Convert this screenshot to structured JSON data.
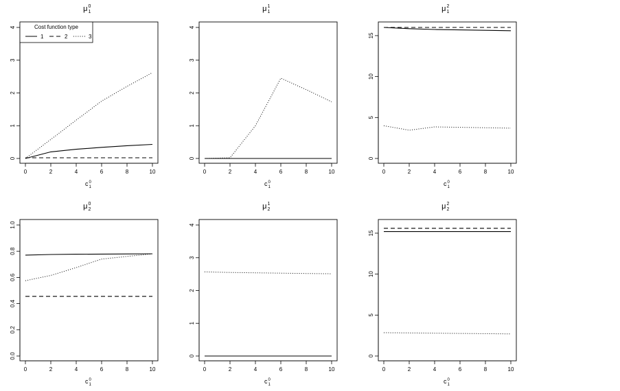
{
  "chart_data": [
    {
      "type": "line",
      "title": {
        "base": "μ",
        "sub": "1",
        "sup": "0"
      },
      "xlabel": {
        "base": "c",
        "sub": "1",
        "sup": "0"
      },
      "x": [
        0,
        2,
        4,
        6,
        8,
        10
      ],
      "xticks": [
        0,
        2,
        4,
        6,
        8,
        10
      ],
      "ylim": [
        0,
        4
      ],
      "yticks": [
        "0",
        "1",
        "2",
        "3",
        "4"
      ],
      "series": [
        {
          "name": "1",
          "linestyle": "solid",
          "values": [
            0.0,
            0.2,
            0.28,
            0.34,
            0.39,
            0.43
          ]
        },
        {
          "name": "2",
          "linestyle": "dashed",
          "values": [
            0.02,
            0.02,
            0.02,
            0.02,
            0.02,
            0.02
          ]
        },
        {
          "name": "3",
          "linestyle": "dotted",
          "values": [
            0.0,
            0.58,
            1.17,
            1.75,
            2.2,
            2.62
          ]
        }
      ],
      "legend": {
        "title": "Cost function type",
        "position": "top-left",
        "entries": [
          "1",
          "2",
          "3"
        ]
      }
    },
    {
      "type": "line",
      "title": {
        "base": "μ",
        "sub": "1",
        "sup": "1"
      },
      "xlabel": {
        "base": "c",
        "sub": "1",
        "sup": "0"
      },
      "x": [
        0,
        2,
        4,
        6,
        8,
        10
      ],
      "xticks": [
        0,
        2,
        4,
        6,
        8,
        10
      ],
      "ylim": [
        0,
        4
      ],
      "yticks": [
        "0",
        "1",
        "2",
        "3",
        "4"
      ],
      "series": [
        {
          "name": "1",
          "linestyle": "solid",
          "values": [
            0,
            0,
            0,
            0,
            0,
            0
          ]
        },
        {
          "name": "2",
          "linestyle": "dashed",
          "values": [
            0,
            0,
            0,
            0,
            0,
            0
          ]
        },
        {
          "name": "3",
          "linestyle": "dotted",
          "values": [
            0,
            0.02,
            1.0,
            2.45,
            2.1,
            1.73
          ]
        }
      ]
    },
    {
      "type": "line",
      "title": {
        "base": "μ",
        "sub": "1",
        "sup": "2"
      },
      "xlabel": {
        "base": "c",
        "sub": "1",
        "sup": "0"
      },
      "x": [
        0,
        2,
        4,
        6,
        8,
        10
      ],
      "xticks": [
        0,
        2,
        4,
        6,
        8,
        10
      ],
      "ylim": [
        0,
        16
      ],
      "yticks": [
        "0",
        "5",
        "10",
        "15"
      ],
      "series": [
        {
          "name": "1",
          "linestyle": "solid",
          "values": [
            16.0,
            15.85,
            15.75,
            15.7,
            15.65,
            15.6
          ]
        },
        {
          "name": "2",
          "linestyle": "dashed",
          "values": [
            16.0,
            16.0,
            16.0,
            16.0,
            16.0,
            16.0
          ]
        },
        {
          "name": "3",
          "linestyle": "dotted",
          "values": [
            4.0,
            3.45,
            3.85,
            3.8,
            3.75,
            3.7
          ]
        }
      ]
    },
    {
      "type": "line",
      "title": {
        "base": "μ",
        "sub": "2",
        "sup": "0"
      },
      "xlabel": {
        "base": "c",
        "sub": "1",
        "sup": "0"
      },
      "x": [
        0,
        2,
        4,
        6,
        8,
        10
      ],
      "xticks": [
        0,
        2,
        4,
        6,
        8,
        10
      ],
      "ylim": [
        0,
        1
      ],
      "yticks": [
        "0.0",
        "0.2",
        "0.4",
        "0.6",
        "0.8",
        "1.0"
      ],
      "series": [
        {
          "name": "1",
          "linestyle": "solid",
          "values": [
            0.77,
            0.775,
            0.777,
            0.778,
            0.779,
            0.78
          ]
        },
        {
          "name": "2",
          "linestyle": "dashed",
          "values": [
            0.455,
            0.455,
            0.455,
            0.455,
            0.455,
            0.455
          ]
        },
        {
          "name": "3",
          "linestyle": "dotted",
          "values": [
            0.575,
            0.615,
            0.675,
            0.74,
            0.76,
            0.78
          ]
        }
      ]
    },
    {
      "type": "line",
      "title": {
        "base": "μ",
        "sub": "2",
        "sup": "1"
      },
      "xlabel": {
        "base": "c",
        "sub": "1",
        "sup": "0"
      },
      "x": [
        0,
        2,
        4,
        6,
        8,
        10
      ],
      "xticks": [
        0,
        2,
        4,
        6,
        8,
        10
      ],
      "ylim": [
        0,
        4
      ],
      "yticks": [
        "0",
        "1",
        "2",
        "3",
        "4"
      ],
      "series": [
        {
          "name": "1",
          "linestyle": "solid",
          "values": [
            0,
            0,
            0,
            0,
            0,
            0
          ]
        },
        {
          "name": "2",
          "linestyle": "dashed",
          "values": [
            0,
            0,
            0,
            0,
            0,
            0
          ]
        },
        {
          "name": "3",
          "linestyle": "dotted",
          "values": [
            2.57,
            2.55,
            2.54,
            2.53,
            2.52,
            2.51
          ]
        }
      ]
    },
    {
      "type": "line",
      "title": {
        "base": "μ",
        "sub": "2",
        "sup": "2"
      },
      "xlabel": {
        "base": "c",
        "sub": "1",
        "sup": "0"
      },
      "x": [
        0,
        2,
        4,
        6,
        8,
        10
      ],
      "xticks": [
        0,
        2,
        4,
        6,
        8,
        10
      ],
      "ylim": [
        0,
        16
      ],
      "yticks": [
        "0",
        "5",
        "10",
        "15"
      ],
      "series": [
        {
          "name": "1",
          "linestyle": "solid",
          "values": [
            15.2,
            15.2,
            15.2,
            15.2,
            15.2,
            15.2
          ]
        },
        {
          "name": "2",
          "linestyle": "dashed",
          "values": [
            15.6,
            15.6,
            15.6,
            15.6,
            15.6,
            15.6
          ]
        },
        {
          "name": "3",
          "linestyle": "dotted",
          "values": [
            2.85,
            2.82,
            2.79,
            2.76,
            2.73,
            2.7
          ]
        }
      ]
    }
  ]
}
